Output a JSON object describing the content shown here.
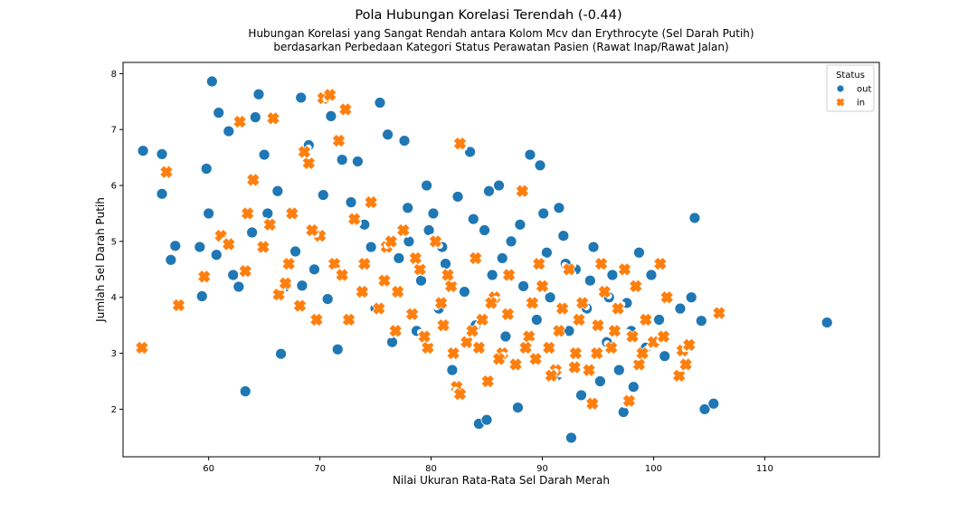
{
  "chart_data": {
    "type": "scatter",
    "title": "Pola Hubungan Korelasi Terendah (-0.44)",
    "subtitle": [
      "Hubungan Korelasi yang Sangat Rendah antara Kolom Mcv dan Erythrocyte (Sel Darah Putih)",
      "berdasarkan Perbedaan Kategori Status Perawatan Pasien (Rawat Inap/Rawat Jalan)"
    ],
    "xlabel": "Nilai Ukuran Rata-Rata Sel Darah Merah",
    "ylabel": "Jumlah Sel Darah Putih",
    "xlim": [
      52.3,
      120.3
    ],
    "ylim": [
      1.15,
      8.2
    ],
    "xticks": [
      60,
      70,
      80,
      90,
      100,
      110
    ],
    "yticks": [
      2,
      3,
      4,
      5,
      6,
      7,
      8
    ],
    "grid": false,
    "legend": {
      "title": "Status",
      "placement": "top-right"
    },
    "series": [
      {
        "name": "out",
        "marker": "circle",
        "color": "#1f77b4",
        "points": [
          [
            54.1,
            6.62
          ],
          [
            55.8,
            6.56
          ],
          [
            55.8,
            5.85
          ],
          [
            56.6,
            4.67
          ],
          [
            57.0,
            4.92
          ],
          [
            59.2,
            4.9
          ],
          [
            59.4,
            4.02
          ],
          [
            59.8,
            6.3
          ],
          [
            60.0,
            5.5
          ],
          [
            60.3,
            7.86
          ],
          [
            60.7,
            4.76
          ],
          [
            60.9,
            7.3
          ],
          [
            61.8,
            6.97
          ],
          [
            62.2,
            4.4
          ],
          [
            62.7,
            4.19
          ],
          [
            63.3,
            2.32
          ],
          [
            63.9,
            5.16
          ],
          [
            64.2,
            7.22
          ],
          [
            64.5,
            7.63
          ],
          [
            65.0,
            6.55
          ],
          [
            65.3,
            5.5
          ],
          [
            66.5,
            2.99
          ],
          [
            67.0,
            4.2
          ],
          [
            67.8,
            4.82
          ],
          [
            68.3,
            7.57
          ],
          [
            68.4,
            4.21
          ],
          [
            69.0,
            6.72
          ],
          [
            70.3,
            5.83
          ],
          [
            70.7,
            3.97
          ],
          [
            71.0,
            7.24
          ],
          [
            71.6,
            3.07
          ],
          [
            72.0,
            6.46
          ],
          [
            73.4,
            6.43
          ],
          [
            74.0,
            5.3
          ],
          [
            75.0,
            3.8
          ],
          [
            75.4,
            7.48
          ],
          [
            76.1,
            6.91
          ],
          [
            76.5,
            3.2
          ],
          [
            77.1,
            4.7
          ],
          [
            77.6,
            6.8
          ],
          [
            78.0,
            5.0
          ],
          [
            78.7,
            3.4
          ],
          [
            79.1,
            4.3
          ],
          [
            79.6,
            6.0
          ],
          [
            80.2,
            5.5
          ],
          [
            80.7,
            3.8
          ],
          [
            81.3,
            4.6
          ],
          [
            81.9,
            2.7
          ],
          [
            82.4,
            5.8
          ],
          [
            83.0,
            4.1
          ],
          [
            83.5,
            6.6
          ],
          [
            84.0,
            3.5
          ],
          [
            84.3,
            1.74
          ],
          [
            84.8,
            5.2
          ],
          [
            85.0,
            1.81
          ],
          [
            85.5,
            4.4
          ],
          [
            86.1,
            6.0
          ],
          [
            86.7,
            3.3
          ],
          [
            87.2,
            5.0
          ],
          [
            87.8,
            2.03
          ],
          [
            88.3,
            4.2
          ],
          [
            88.9,
            6.55
          ],
          [
            89.5,
            3.6
          ],
          [
            89.8,
            6.36
          ],
          [
            90.1,
            5.5
          ],
          [
            90.7,
            4.0
          ],
          [
            91.3,
            2.6
          ],
          [
            91.9,
            5.1
          ],
          [
            92.4,
            3.4
          ],
          [
            92.6,
            1.49
          ],
          [
            93.0,
            4.5
          ],
          [
            93.5,
            2.25
          ],
          [
            94.0,
            3.8
          ],
          [
            94.6,
            4.9
          ],
          [
            95.2,
            2.5
          ],
          [
            95.8,
            3.2
          ],
          [
            96.3,
            4.4
          ],
          [
            96.9,
            2.7
          ],
          [
            97.3,
            1.95
          ],
          [
            97.6,
            3.9
          ],
          [
            98.2,
            2.4
          ],
          [
            98.7,
            4.8
          ],
          [
            99.3,
            3.1
          ],
          [
            99.8,
            4.4
          ],
          [
            100.5,
            3.6
          ],
          [
            101.0,
            2.95
          ],
          [
            102.4,
            3.8
          ],
          [
            103.4,
            4.0
          ],
          [
            103.7,
            5.42
          ],
          [
            104.3,
            3.58
          ],
          [
            104.6,
            2.0
          ],
          [
            105.4,
            2.1
          ],
          [
            115.6,
            3.55
          ],
          [
            66.2,
            5.9
          ],
          [
            69.5,
            4.5
          ],
          [
            72.8,
            5.7
          ],
          [
            74.6,
            4.9
          ],
          [
            77.9,
            5.6
          ],
          [
            81.0,
            4.9
          ],
          [
            83.8,
            5.4
          ],
          [
            86.4,
            4.7
          ],
          [
            88.0,
            5.3
          ],
          [
            90.4,
            4.8
          ],
          [
            92.1,
            4.6
          ],
          [
            94.3,
            4.3
          ],
          [
            96.0,
            4.0
          ],
          [
            98.0,
            3.4
          ],
          [
            85.2,
            5.9
          ],
          [
            79.8,
            5.2
          ],
          [
            91.5,
            5.6
          ]
        ]
      },
      {
        "name": "in",
        "marker": "x",
        "color": "#ff7f0e",
        "points": [
          [
            54.0,
            3.1
          ],
          [
            56.2,
            6.24
          ],
          [
            57.3,
            3.86
          ],
          [
            59.6,
            4.37
          ],
          [
            61.1,
            5.1
          ],
          [
            62.8,
            7.14
          ],
          [
            63.3,
            4.47
          ],
          [
            64.9,
            4.9
          ],
          [
            65.8,
            7.2
          ],
          [
            66.3,
            4.05
          ],
          [
            67.5,
            5.5
          ],
          [
            68.2,
            3.85
          ],
          [
            69.0,
            6.4
          ],
          [
            69.7,
            3.6
          ],
          [
            70.3,
            7.56
          ],
          [
            70.9,
            7.62
          ],
          [
            71.3,
            4.6
          ],
          [
            72.3,
            7.36
          ],
          [
            72.6,
            3.6
          ],
          [
            73.8,
            4.1
          ],
          [
            74.6,
            5.7
          ],
          [
            75.3,
            3.8
          ],
          [
            76.0,
            4.9
          ],
          [
            76.8,
            3.4
          ],
          [
            77.5,
            5.2
          ],
          [
            78.3,
            3.7
          ],
          [
            79.0,
            4.5
          ],
          [
            79.7,
            3.1
          ],
          [
            80.4,
            5.0
          ],
          [
            81.1,
            3.5
          ],
          [
            81.8,
            4.2
          ],
          [
            82.3,
            2.4
          ],
          [
            82.6,
            2.27
          ],
          [
            82.6,
            6.75
          ],
          [
            83.2,
            3.2
          ],
          [
            84.0,
            4.7
          ],
          [
            84.6,
            3.6
          ],
          [
            85.1,
            2.5
          ],
          [
            85.7,
            4.0
          ],
          [
            86.4,
            3.0
          ],
          [
            87.0,
            4.4
          ],
          [
            87.6,
            2.8
          ],
          [
            88.2,
            5.9
          ],
          [
            88.8,
            3.3
          ],
          [
            89.4,
            2.9
          ],
          [
            90.0,
            4.2
          ],
          [
            90.6,
            3.1
          ],
          [
            91.2,
            2.7
          ],
          [
            91.8,
            3.8
          ],
          [
            92.4,
            4.5
          ],
          [
            93.0,
            3.0
          ],
          [
            93.6,
            3.9
          ],
          [
            94.2,
            2.7
          ],
          [
            94.5,
            2.1
          ],
          [
            95.0,
            3.5
          ],
          [
            95.6,
            4.1
          ],
          [
            96.2,
            3.1
          ],
          [
            96.8,
            3.8
          ],
          [
            97.4,
            4.5
          ],
          [
            97.8,
            2.15
          ],
          [
            98.1,
            3.3
          ],
          [
            98.7,
            2.8
          ],
          [
            99.3,
            3.6
          ],
          [
            100.0,
            3.2
          ],
          [
            100.6,
            4.6
          ],
          [
            101.2,
            4.0
          ],
          [
            102.3,
            2.6
          ],
          [
            102.6,
            3.05
          ],
          [
            102.9,
            2.8
          ],
          [
            103.2,
            3.15
          ],
          [
            105.9,
            3.72
          ],
          [
            61.8,
            4.95
          ],
          [
            63.5,
            5.5
          ],
          [
            66.9,
            4.25
          ],
          [
            68.6,
            6.6
          ],
          [
            71.7,
            6.8
          ],
          [
            73.1,
            5.4
          ],
          [
            75.8,
            4.3
          ],
          [
            78.6,
            4.7
          ],
          [
            80.9,
            3.9
          ],
          [
            83.7,
            3.4
          ],
          [
            86.9,
            3.7
          ],
          [
            89.1,
            3.9
          ],
          [
            91.5,
            3.4
          ],
          [
            93.3,
            3.6
          ],
          [
            96.5,
            3.4
          ],
          [
            65.5,
            5.3
          ],
          [
            70.0,
            5.1
          ],
          [
            74.0,
            4.6
          ],
          [
            77.0,
            4.1
          ],
          [
            79.4,
            3.3
          ],
          [
            82.0,
            3.0
          ],
          [
            84.3,
            3.1
          ],
          [
            86.1,
            2.9
          ],
          [
            88.5,
            3.1
          ],
          [
            90.8,
            2.6
          ],
          [
            92.9,
            2.75
          ],
          [
            94.9,
            3.0
          ],
          [
            99.0,
            3.0
          ],
          [
            100.9,
            3.3
          ],
          [
            67.2,
            4.6
          ],
          [
            72.0,
            4.4
          ],
          [
            76.4,
            5.0
          ],
          [
            81.5,
            4.4
          ],
          [
            85.4,
            3.9
          ],
          [
            89.7,
            4.6
          ],
          [
            95.3,
            4.6
          ],
          [
            98.4,
            4.2
          ],
          [
            64.0,
            6.1
          ],
          [
            69.3,
            5.2
          ]
        ]
      }
    ]
  }
}
